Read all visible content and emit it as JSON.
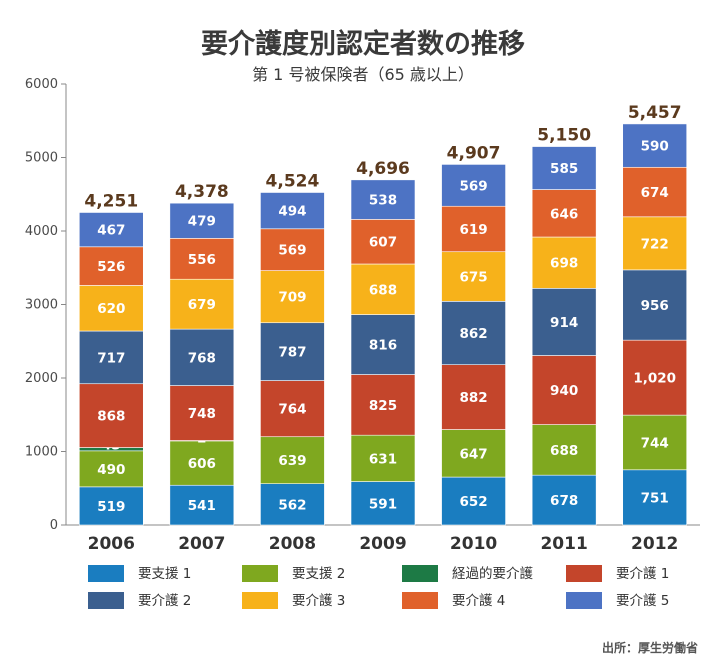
{
  "chart_data": {
    "type": "bar",
    "stacked": true,
    "title": "要介護度別認定者数の推移",
    "subtitle": "第 1 号被保険者（65 歳以上）",
    "source": "出所：厚生労働省",
    "categories": [
      "2006",
      "2007",
      "2008",
      "2009",
      "2010",
      "2011",
      "2012"
    ],
    "totals": [
      "4,251",
      "4,378",
      "4,524",
      "4,696",
      "4,907",
      "5,150",
      "5,457"
    ],
    "ylim": [
      0,
      6000
    ],
    "yticks": [
      "0",
      "1000",
      "2000",
      "3000",
      "4000",
      "5000",
      "6000"
    ],
    "grid": false,
    "legend_position": "bottom",
    "series": [
      {
        "name": "要支援 1",
        "color": "#1a7dc0",
        "values": [
          519,
          541,
          562,
          591,
          652,
          678,
          751
        ],
        "labels": [
          "519",
          "541",
          "562",
          "591",
          "652",
          "678",
          "751"
        ]
      },
      {
        "name": "要支援 2",
        "color": "#7fa81f",
        "values": [
          490,
          606,
          639,
          631,
          647,
          688,
          744
        ],
        "labels": [
          "490",
          "606",
          "639",
          "631",
          "647",
          "688",
          "744"
        ]
      },
      {
        "name": "経過的要介護",
        "color": "#1d7a45",
        "values": [
          45,
          2,
          0,
          0,
          0,
          0,
          0
        ],
        "labels": [
          "45",
          "2",
          "",
          "",
          "",
          "",
          ""
        ]
      },
      {
        "name": "要介護 1",
        "color": "#c4452b",
        "values": [
          868,
          748,
          764,
          825,
          882,
          940,
          1020
        ],
        "labels": [
          "868",
          "748",
          "764",
          "825",
          "882",
          "940",
          "1,020"
        ]
      },
      {
        "name": "要介護 2",
        "color": "#3b5f8f",
        "values": [
          717,
          768,
          787,
          816,
          862,
          914,
          956
        ],
        "labels": [
          "717",
          "768",
          "787",
          "816",
          "862",
          "914",
          "956"
        ]
      },
      {
        "name": "要介護 3",
        "color": "#f7b21a",
        "values": [
          620,
          679,
          709,
          688,
          675,
          698,
          722
        ],
        "labels": [
          "620",
          "679",
          "709",
          "688",
          "675",
          "698",
          "722"
        ]
      },
      {
        "name": "要介護 4",
        "color": "#e0612b",
        "values": [
          526,
          556,
          569,
          607,
          619,
          646,
          674
        ],
        "labels": [
          "526",
          "556",
          "569",
          "607",
          "619",
          "646",
          "674"
        ]
      },
      {
        "name": "要介護 5",
        "color": "#4d73c4",
        "values": [
          467,
          479,
          494,
          538,
          569,
          585,
          590
        ],
        "labels": [
          "467",
          "479",
          "494",
          "538",
          "569",
          "585",
          "590"
        ]
      }
    ]
  }
}
